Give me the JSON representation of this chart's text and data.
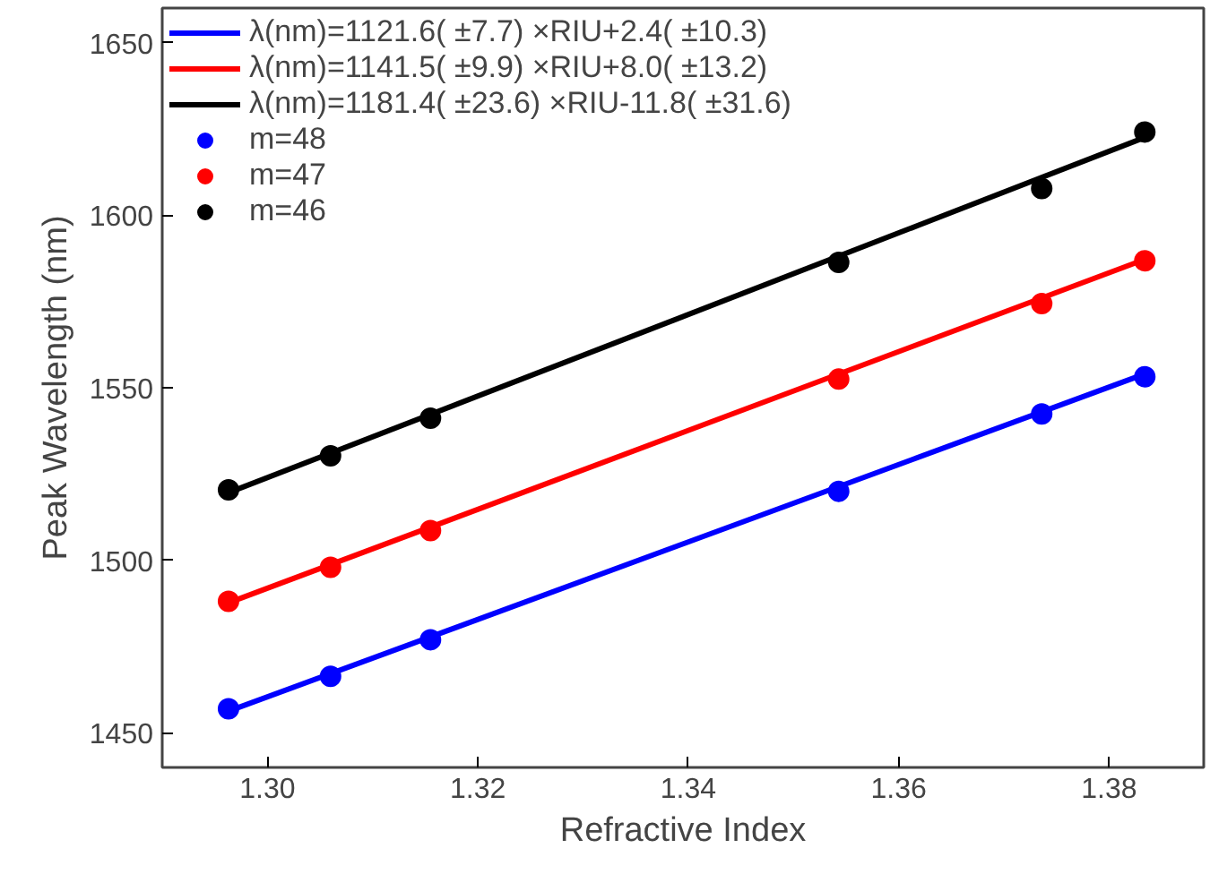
{
  "chart_data": {
    "type": "scatter",
    "xlabel": "Refractive Index",
    "ylabel": "Peak Wavelength (nm)",
    "xlim": [
      1.29,
      1.389
    ],
    "ylim": [
      1440,
      1660
    ],
    "xticks": [
      {
        "value": 1.3,
        "label": "1.30"
      },
      1.32,
      1.34,
      1.36,
      1.38
    ],
    "yticks": [
      1450,
      1500,
      1550,
      1600,
      1650
    ],
    "grid": false,
    "legend": "top left",
    "series": [
      {
        "name": "λ(nm)=1121.6( ±7.7) ×RIU+2.4( ±10.3)",
        "type": "line",
        "marker": "none",
        "line_style": "solid",
        "color": "#0000ff",
        "x": [
          1.2963,
          1.3834
        ],
        "values": [
          1456.3,
          1554.0
        ]
      },
      {
        "name": "λ(nm)=1141.5( ±9.9) ×RIU+8.0( ±13.2)",
        "type": "line",
        "marker": "none",
        "line_style": "solid",
        "color": "#ff0000",
        "x": [
          1.2963,
          1.3834
        ],
        "values": [
          1487.7,
          1587.2
        ]
      },
      {
        "name": "λ(nm)=1181.4( ±23.6) ×RIU-11.8( ±31.6)",
        "type": "line",
        "marker": "none",
        "line_style": "solid",
        "color": "#000000",
        "x": [
          1.2963,
          1.3834
        ],
        "values": [
          1519.6,
          1622.5
        ]
      },
      {
        "name": "m=48",
        "marker": "circle",
        "color": "#0000ff",
        "x": [
          1.2963,
          1.306,
          1.3155,
          1.3543,
          1.3736,
          1.3834
        ],
        "values": [
          1457.0,
          1466.4,
          1477.0,
          1520.0,
          1542.4,
          1553.2
        ]
      },
      {
        "name": "m=47",
        "marker": "circle",
        "color": "#ff0000",
        "x": [
          1.2963,
          1.306,
          1.3155,
          1.3543,
          1.3736,
          1.3834
        ],
        "values": [
          1488.1,
          1498.0,
          1508.6,
          1552.5,
          1574.4,
          1586.8
        ]
      },
      {
        "name": "m=46",
        "marker": "circle",
        "color": "#000000",
        "x": [
          1.2963,
          1.306,
          1.3155,
          1.3543,
          1.3736,
          1.3834
        ],
        "values": [
          1520.4,
          1530.3,
          1541.2,
          1586.3,
          1607.7,
          1624.1
        ]
      }
    ]
  }
}
